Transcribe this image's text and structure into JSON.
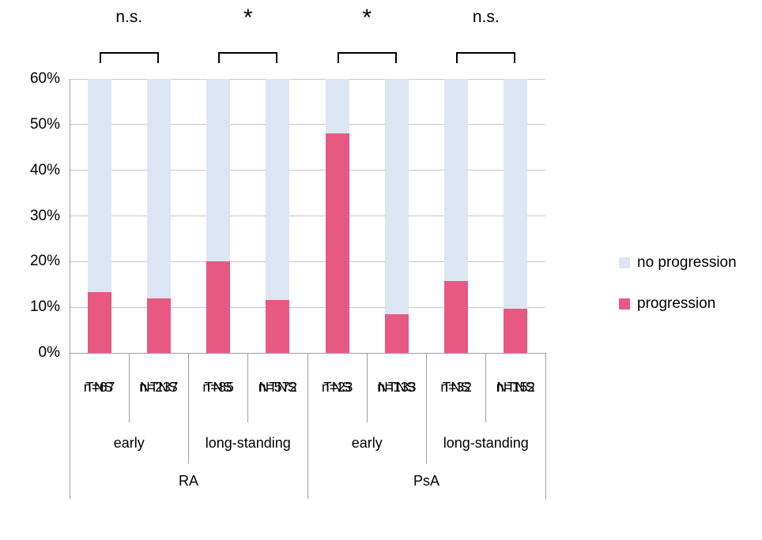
{
  "chart_data": {
    "type": "bar",
    "stacked": true,
    "title": "",
    "xlabel": "",
    "ylabel": "",
    "ylim": [
      0,
      60
    ],
    "grid": true,
    "yticks": [
      0,
      10,
      20,
      30,
      40,
      50,
      60
    ],
    "ytick_labels": [
      "0%",
      "10%",
      "20%",
      "30%",
      "40%",
      "50%",
      "60%"
    ],
    "categories": [
      "TNS n=67",
      "NTNS n=237",
      "TNS n=85",
      "NTNS n=572",
      "TNS n=23",
      "NTNS n=133",
      "TNS n=32",
      "NTNS n=152"
    ],
    "tick_label_lines": [
      [
        "TNS",
        "n=67"
      ],
      [
        "NTNS",
        "n=237"
      ],
      [
        "TNS",
        "n=85"
      ],
      [
        "NTNS",
        "n=572"
      ],
      [
        "TNS",
        "n=23"
      ],
      [
        "NTNS",
        "n=133"
      ],
      [
        "TNS",
        "n=32"
      ],
      [
        "NTNS",
        "n=152"
      ]
    ],
    "series": [
      {
        "name": "progression",
        "color": "#e75983",
        "values": [
          13.3,
          12.0,
          20.0,
          11.5,
          48.0,
          8.5,
          15.8,
          9.7
        ]
      },
      {
        "name": "no progression",
        "color": "#dce6f2",
        "values": [
          46.7,
          48.0,
          40.0,
          48.5,
          12.0,
          51.5,
          44.2,
          50.3
        ]
      }
    ],
    "group_labels": [
      "early",
      "long-standing",
      "early",
      "long-standing"
    ],
    "superior_group_labels": [
      "RA",
      "PsA"
    ],
    "significance_labels": [
      "n.s.",
      "*",
      "*",
      "n.s."
    ],
    "legend": {
      "position": "right",
      "items": [
        {
          "label": "no progression",
          "color": "#dce6f2"
        },
        {
          "label": "progression",
          "color": "#e75983"
        }
      ]
    }
  },
  "colors": {
    "progression": "#e75983",
    "no_progression": "#dce6f2",
    "gridline": "#c9c9c9",
    "axis": "#9e9e9e",
    "bracket": "#000000",
    "text": "#000000"
  }
}
